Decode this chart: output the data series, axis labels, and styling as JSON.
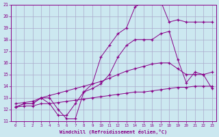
{
  "xlabel": "Windchill (Refroidissement éolien,°C)",
  "xlim": [
    0,
    23
  ],
  "ylim": [
    11,
    21
  ],
  "xticks": [
    0,
    1,
    2,
    3,
    4,
    5,
    6,
    7,
    8,
    9,
    10,
    11,
    12,
    13,
    14,
    15,
    16,
    17,
    18,
    19,
    20,
    21,
    22,
    23
  ],
  "yticks": [
    11,
    12,
    13,
    14,
    15,
    16,
    17,
    18,
    19,
    20,
    21
  ],
  "background_color": "#cce8f0",
  "grid_color": "#aaaacc",
  "line_color": "#880088",
  "lines": [
    {
      "x": [
        0,
        1,
        2,
        3,
        4,
        5,
        6,
        7,
        8,
        9,
        10,
        11,
        12,
        13,
        14,
        15,
        16,
        17,
        18,
        19,
        20,
        21,
        22,
        23
      ],
      "y": [
        12.2,
        12.3,
        12.3,
        12.5,
        12.5,
        12.6,
        12.7,
        12.8,
        12.9,
        13.0,
        13.1,
        13.2,
        13.3,
        13.4,
        13.5,
        13.5,
        13.6,
        13.7,
        13.8,
        13.9,
        13.9,
        14.0,
        14.0,
        14.0
      ]
    },
    {
      "x": [
        0,
        1,
        2,
        3,
        4,
        5,
        6,
        7,
        8,
        9,
        10,
        11,
        12,
        13,
        14,
        15,
        16,
        17,
        18,
        19,
        20,
        21,
        22,
        23
      ],
      "y": [
        12.5,
        12.6,
        12.7,
        13.0,
        13.2,
        13.4,
        13.6,
        13.8,
        14.0,
        14.2,
        14.4,
        14.7,
        15.0,
        15.3,
        15.5,
        15.7,
        15.9,
        16.0,
        16.0,
        15.5,
        15.0,
        15.0,
        15.0,
        15.2
      ]
    },
    {
      "x": [
        0,
        1,
        2,
        3,
        4,
        5,
        6,
        7,
        8,
        9,
        10,
        11,
        12,
        13,
        14,
        15,
        16,
        17,
        18,
        19,
        20,
        21,
        22,
        23
      ],
      "y": [
        12.2,
        12.5,
        12.5,
        13.0,
        12.5,
        11.5,
        11.5,
        12.5,
        13.5,
        13.8,
        14.2,
        15.0,
        16.5,
        17.5,
        18.0,
        18.0,
        18.0,
        18.5,
        18.7,
        16.3,
        14.3,
        15.2,
        15.0,
        13.8
      ]
    },
    {
      "x": [
        0,
        1,
        2,
        3,
        4,
        5,
        6,
        7,
        8,
        9,
        10,
        11,
        12,
        13,
        14,
        15,
        16,
        17,
        18,
        19,
        20,
        21,
        22,
        23
      ],
      "y": [
        12.2,
        12.5,
        12.5,
        13.0,
        13.0,
        12.0,
        11.2,
        11.2,
        13.5,
        14.2,
        16.5,
        17.5,
        18.5,
        19.0,
        20.8,
        21.2,
        21.3,
        21.3,
        19.5,
        19.7,
        19.5,
        19.5,
        19.5,
        19.5
      ]
    }
  ]
}
